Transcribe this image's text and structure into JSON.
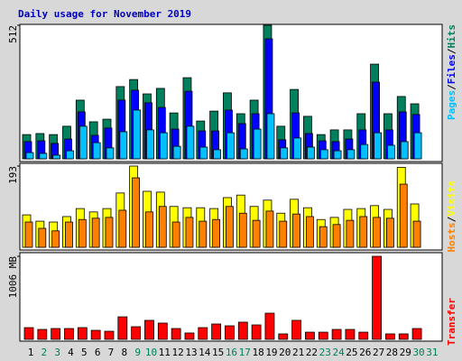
{
  "chart_data": [
    {
      "type": "bar",
      "title": "Daily usage for November 2019",
      "ylim": [
        0,
        512
      ],
      "yticks": [
        512
      ],
      "label_separator": "/",
      "series": [
        {
          "name": "Hits",
          "color": "#00805c",
          "values": [
            93,
            97,
            93,
            125,
            225,
            142,
            152,
            277,
            304,
            249,
            270,
            176,
            311,
            145,
            183,
            253,
            173,
            225,
            512,
            125,
            266,
            163,
            93,
            111,
            111,
            173,
            363,
            173,
            239,
            211,
            null
          ]
        },
        {
          "name": "Files",
          "color": "#0000ff",
          "values": [
            66,
            69,
            59,
            76,
            180,
            90,
            118,
            225,
            263,
            215,
            197,
            114,
            259,
            107,
            107,
            187,
            135,
            173,
            460,
            73,
            176,
            97,
            69,
            66,
            76,
            111,
            294,
            111,
            180,
            170,
            null
          ]
        },
        {
          "name": "Pages",
          "color": "#00c0ff",
          "values": [
            24,
            21,
            14,
            31,
            125,
            62,
            42,
            104,
            187,
            111,
            100,
            48,
            125,
            45,
            35,
            100,
            38,
            114,
            173,
            42,
            80,
            45,
            35,
            31,
            35,
            55,
            100,
            52,
            66,
            100,
            null
          ]
        }
      ]
    },
    {
      "type": "bar",
      "ylim": [
        0,
        193
      ],
      "yticks": [
        193
      ],
      "label_separator": "/",
      "series": [
        {
          "name": "Visits",
          "color": "#ffff00",
          "values": [
            77,
            62,
            60,
            73,
            92,
            84,
            92,
            129,
            193,
            133,
            131,
            97,
            94,
            94,
            92,
            118,
            124,
            97,
            112,
            81,
            114,
            94,
            66,
            71,
            90,
            92,
            99,
            90,
            190,
            103,
            null
          ]
        },
        {
          "name": "Hosts",
          "color": "#ff8000",
          "values": [
            60,
            45,
            39,
            60,
            66,
            69,
            71,
            88,
            165,
            84,
            97,
            60,
            71,
            62,
            66,
            97,
            81,
            64,
            86,
            62,
            79,
            73,
            49,
            54,
            64,
            73,
            71,
            69,
            150,
            62,
            null
          ]
        }
      ]
    },
    {
      "type": "bar",
      "ylim": [
        0,
        1006
      ],
      "yticks": [
        {
          "value": 1006,
          "label": "1006 MB"
        }
      ],
      "categories": [
        "1",
        "2",
        "3",
        "4",
        "5",
        "6",
        "7",
        "8",
        "9",
        "10",
        "11",
        "12",
        "13",
        "14",
        "15",
        "16",
        "17",
        "18",
        "19",
        "20",
        "21",
        "22",
        "23",
        "24",
        "25",
        "26",
        "27",
        "28",
        "29",
        "30",
        "31"
      ],
      "category_colors": [
        "#000000",
        "#00805c",
        "#00805c",
        "#000000",
        "#000000",
        "#000000",
        "#000000",
        "#000000",
        "#00805c",
        "#00805c",
        "#000000",
        "#000000",
        "#000000",
        "#000000",
        "#000000",
        "#00805c",
        "#00805c",
        "#000000",
        "#000000",
        "#000000",
        "#000000",
        "#000000",
        "#00805c",
        "#00805c",
        "#000000",
        "#000000",
        "#000000",
        "#000000",
        "#000000",
        "#00805c",
        "#00805c"
      ],
      "series": [
        {
          "name": "Transfer",
          "color": "#ff0000",
          "values": [
            142,
            120,
            131,
            131,
            142,
            109,
            98,
            273,
            153,
            230,
            197,
            131,
            77,
            142,
            186,
            164,
            208,
            175,
            317,
            66,
            230,
            87,
            87,
            120,
            120,
            87,
            1006,
            66,
            66,
            131,
            null
          ]
        }
      ]
    }
  ]
}
